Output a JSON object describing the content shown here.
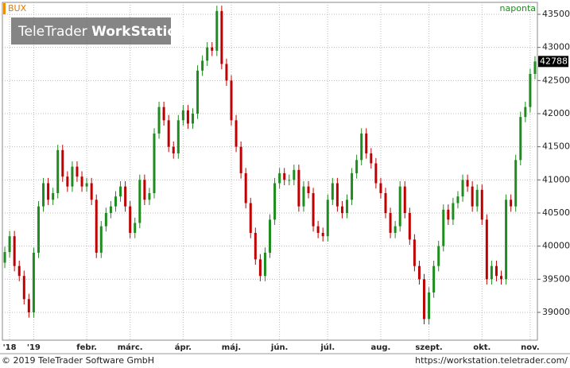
{
  "chart_data": {
    "type": "candlestick",
    "title": "BUX",
    "period": "naponta",
    "categories": [
      null,
      "'18",
      null,
      null,
      null,
      null,
      "'19",
      null,
      null,
      null,
      null,
      null,
      null,
      null,
      null,
      null,
      null,
      "febr.",
      null,
      null,
      null,
      null,
      null,
      null,
      null,
      null,
      "márc.",
      null,
      null,
      null,
      null,
      null,
      null,
      null,
      null,
      null,
      null,
      "ápr.",
      null,
      null,
      null,
      null,
      null,
      null,
      null,
      null,
      null,
      "máj.",
      null,
      null,
      null,
      null,
      null,
      null,
      null,
      null,
      null,
      "jún.",
      null,
      null,
      null,
      null,
      null,
      null,
      null,
      null,
      null,
      "júl.",
      null,
      null,
      null,
      null,
      null,
      null,
      null,
      null,
      null,
      null,
      "aug.",
      null,
      null,
      null,
      null,
      null,
      null,
      null,
      null,
      null,
      "szept.",
      null,
      null,
      null,
      null,
      null,
      null,
      null,
      null,
      null,
      null,
      "okt.",
      null,
      null,
      null,
      null,
      null,
      null,
      null,
      null,
      null,
      "nov.",
      null
    ],
    "open": [
      39750,
      39910,
      40150,
      39700,
      39550,
      39200,
      39000,
      39900,
      40600,
      40950,
      40700,
      40800,
      41450,
      41050,
      40900,
      41200,
      41050,
      40900,
      40950,
      40700,
      39900,
      40300,
      40500,
      40600,
      40750,
      40900,
      40600,
      40200,
      40350,
      41000,
      40700,
      40800,
      41700,
      42100,
      41900,
      41500,
      41400,
      41900,
      42050,
      41850,
      42000,
      42650,
      42800,
      43000,
      42950,
      43550,
      42750,
      42500,
      41900,
      41500,
      41100,
      40650,
      40200,
      39800,
      39550,
      39900,
      40400,
      40950,
      41100,
      41000,
      41000,
      41150,
      40600,
      40900,
      40800,
      40300,
      40200,
      40150,
      40700,
      40950,
      40600,
      40500,
      40700,
      41100,
      41300,
      41700,
      41400,
      41250,
      40950,
      40800,
      40500,
      40200,
      40300,
      40900,
      40500,
      40100,
      39700,
      39500,
      38900,
      39300,
      39700,
      40000,
      40550,
      40400,
      40650,
      40750,
      41000,
      40900,
      40600,
      40850,
      40400,
      39500,
      39700,
      39550,
      39500,
      40700,
      40600,
      41300,
      41950,
      42100,
      42600
    ],
    "high": [
      39990,
      40230,
      40230,
      39780,
      39630,
      39280,
      39980,
      40680,
      41030,
      41030,
      40880,
      41530,
      41530,
      41130,
      41280,
      41280,
      41130,
      41030,
      41030,
      40780,
      40380,
      40580,
      40680,
      40830,
      40980,
      40980,
      40680,
      40430,
      41080,
      41080,
      40880,
      41780,
      42180,
      42180,
      41980,
      41580,
      41980,
      42130,
      42130,
      42080,
      42730,
      42880,
      43080,
      43080,
      43630,
      43630,
      42830,
      42580,
      41980,
      41580,
      41180,
      40730,
      40280,
      39880,
      39980,
      40480,
      41030,
      41180,
      41180,
      41080,
      41230,
      41230,
      40980,
      40980,
      40880,
      40380,
      40280,
      40780,
      41030,
      41030,
      40680,
      40780,
      41180,
      41380,
      41780,
      41780,
      41480,
      41330,
      41030,
      40880,
      40580,
      40380,
      40980,
      40980,
      40580,
      40180,
      39780,
      39580,
      39380,
      39780,
      40080,
      40630,
      40630,
      40730,
      40830,
      41080,
      41080,
      40980,
      40930,
      40930,
      40480,
      39780,
      39780,
      39630,
      40780,
      40780,
      41380,
      42030,
      42180,
      42680,
      42868
    ],
    "low": [
      39670,
      39830,
      39620,
      39470,
      39120,
      38920,
      38920,
      39820,
      40520,
      40620,
      40620,
      40720,
      40970,
      40820,
      40820,
      40970,
      40820,
      40820,
      40620,
      39820,
      39820,
      40220,
      40420,
      40520,
      40670,
      40520,
      40120,
      40120,
      40270,
      40620,
      40620,
      40720,
      41620,
      41820,
      41420,
      41320,
      41320,
      41820,
      41770,
      41770,
      41920,
      42570,
      42720,
      42870,
      42870,
      42670,
      42420,
      41820,
      41420,
      41020,
      40570,
      40120,
      39720,
      39470,
      39470,
      39820,
      40320,
      40870,
      40920,
      40920,
      40920,
      40520,
      40520,
      40720,
      40220,
      40120,
      40070,
      40070,
      40620,
      40520,
      40420,
      40420,
      40620,
      41020,
      41220,
      41320,
      41170,
      40870,
      40720,
      40420,
      40120,
      40120,
      40220,
      40420,
      40020,
      39620,
      39420,
      38820,
      38820,
      39220,
      39620,
      39920,
      40320,
      40320,
      40570,
      40670,
      40820,
      40520,
      40520,
      40320,
      39420,
      39420,
      39470,
      39420,
      39420,
      40520,
      40520,
      41220,
      41870,
      42020,
      42520
    ],
    "close": [
      39910,
      40150,
      39700,
      39550,
      39200,
      39000,
      39900,
      40600,
      40950,
      40700,
      40800,
      41450,
      41050,
      40900,
      41200,
      41050,
      40900,
      40950,
      40700,
      39900,
      40300,
      40500,
      40600,
      40750,
      40900,
      40600,
      40200,
      40350,
      41000,
      40700,
      40800,
      41700,
      42100,
      41900,
      41500,
      41400,
      41900,
      42050,
      41850,
      42000,
      42650,
      42800,
      43000,
      42950,
      43550,
      42750,
      42500,
      41900,
      41500,
      41100,
      40650,
      40200,
      39800,
      39550,
      39900,
      40400,
      40950,
      41100,
      41000,
      41000,
      41150,
      40600,
      40900,
      40800,
      40300,
      40200,
      40150,
      40700,
      40950,
      40600,
      40500,
      40700,
      41100,
      41300,
      41700,
      41400,
      41250,
      40950,
      40800,
      40500,
      40200,
      40300,
      40900,
      40500,
      40100,
      39700,
      39500,
      38900,
      39300,
      39700,
      40000,
      40550,
      40400,
      40650,
      40750,
      41000,
      40900,
      40600,
      40850,
      40400,
      39500,
      39700,
      39550,
      39500,
      40700,
      40600,
      41300,
      41950,
      42100,
      42600,
      42788
    ],
    "up_color": "#1e8c1e",
    "down_color": "#c00000",
    "ylim": [
      38580,
      43680
    ],
    "yticks": [
      39000,
      39500,
      40000,
      40500,
      41000,
      41500,
      42000,
      42500,
      43000,
      43500
    ],
    "grid": true
  },
  "watermark": {
    "brand": "TeleTrader",
    "product": "WorkStation"
  },
  "footer": {
    "copyright": "© 2019 TeleTrader Software GmbH",
    "url": "https://workstation.teletrader.com/"
  }
}
